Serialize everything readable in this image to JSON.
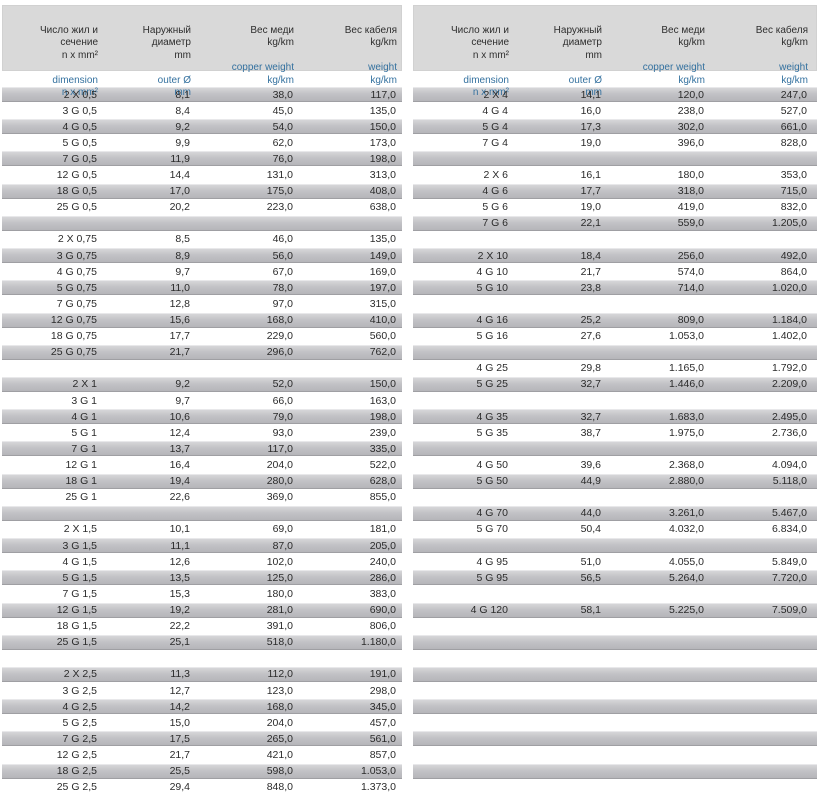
{
  "page": {
    "language": "ru/en",
    "content": "cable specification tables"
  },
  "colors": {
    "accent_blue": "#34719f",
    "header_background": "#d9d9d9",
    "row_gray": "#bcbcc0",
    "text": "#2b2b2b"
  },
  "header": {
    "columns": [
      {
        "ru": "Число жил и\nсечение\nn x mm²",
        "en": "dimension\nn x mm²"
      },
      {
        "ru": "Наружный\nдиаметр\nmm",
        "en": "outer Ø\nmm"
      },
      {
        "ru": "Вес меди\nkg/km",
        "en": "copper weight\nkg/km"
      },
      {
        "ru": "Вес кабеля\nkg/km",
        "en": "weight\nkg/km"
      }
    ]
  },
  "tables": [
    {
      "name": "left",
      "slots": [
        [
          "2 X 0,5",
          "8,1",
          "38,0",
          "117,0"
        ],
        [
          "3 G 0,5",
          "8,4",
          "45,0",
          "135,0"
        ],
        [
          "4 G 0,5",
          "9,2",
          "54,0",
          "150,0"
        ],
        [
          "5 G 0,5",
          "9,9",
          "62,0",
          "173,0"
        ],
        [
          "7 G 0,5",
          "11,9",
          "76,0",
          "198,0"
        ],
        [
          "12 G 0,5",
          "14,4",
          "131,0",
          "313,0"
        ],
        [
          "18 G 0,5",
          "17,0",
          "175,0",
          "408,0"
        ],
        [
          "25 G 0,5",
          "20,2",
          "223,0",
          "638,0"
        ],
        null,
        [
          "2 X 0,75",
          "8,5",
          "46,0",
          "135,0"
        ],
        [
          "3 G 0,75",
          "8,9",
          "56,0",
          "149,0"
        ],
        [
          "4 G 0,75",
          "9,7",
          "67,0",
          "169,0"
        ],
        [
          "5 G 0,75",
          "11,0",
          "78,0",
          "197,0"
        ],
        [
          "7 G 0,75",
          "12,8",
          "97,0",
          "315,0"
        ],
        [
          "12 G 0,75",
          "15,6",
          "168,0",
          "410,0"
        ],
        [
          "18 G 0,75",
          "17,7",
          "229,0",
          "560,0"
        ],
        [
          "25 G 0,75",
          "21,7",
          "296,0",
          "762,0"
        ],
        null,
        [
          "2 X 1",
          "9,2",
          "52,0",
          "150,0"
        ],
        [
          "3 G 1",
          "9,7",
          "66,0",
          "163,0"
        ],
        [
          "4 G 1",
          "10,6",
          "79,0",
          "198,0"
        ],
        [
          "5 G 1",
          "12,4",
          "93,0",
          "239,0"
        ],
        [
          "7 G 1",
          "13,7",
          "117,0",
          "335,0"
        ],
        [
          "12 G 1",
          "16,4",
          "204,0",
          "522,0"
        ],
        [
          "18 G 1",
          "19,4",
          "280,0",
          "628,0"
        ],
        [
          "25 G 1",
          "22,6",
          "369,0",
          "855,0"
        ],
        null,
        [
          "2 X 1,5",
          "10,1",
          "69,0",
          "181,0"
        ],
        [
          "3 G 1,5",
          "11,1",
          "87,0",
          "205,0"
        ],
        [
          "4 G 1,5",
          "12,6",
          "102,0",
          "240,0"
        ],
        [
          "5 G 1,5",
          "13,5",
          "125,0",
          "286,0"
        ],
        [
          "7 G 1,5",
          "15,3",
          "180,0",
          "383,0"
        ],
        [
          "12 G 1,5",
          "19,2",
          "281,0",
          "690,0"
        ],
        [
          "18 G 1,5",
          "22,2",
          "391,0",
          "806,0"
        ],
        [
          "25 G 1,5",
          "25,1",
          "518,0",
          "1.180,0"
        ],
        null,
        [
          "2 X 2,5",
          "11,3",
          "112,0",
          "191,0"
        ],
        [
          "3 G 2,5",
          "12,7",
          "123,0",
          "298,0"
        ],
        [
          "4 G 2,5",
          "14,2",
          "168,0",
          "345,0"
        ],
        [
          "5 G 2,5",
          "15,0",
          "204,0",
          "457,0"
        ],
        [
          "7 G 2,5",
          "17,5",
          "265,0",
          "561,0"
        ],
        [
          "12 G 2,5",
          "21,7",
          "421,0",
          "857,0"
        ],
        [
          "18 G 2,5",
          "25,5",
          "598,0",
          "1.053,0"
        ],
        [
          "25 G 2,5",
          "29,4",
          "848,0",
          "1.373,0"
        ]
      ]
    },
    {
      "name": "right",
      "slots": [
        [
          "2 X 4",
          "14,1",
          "120,0",
          "247,0"
        ],
        [
          "4 G 4",
          "16,0",
          "238,0",
          "527,0"
        ],
        [
          "5 G 4",
          "17,3",
          "302,0",
          "661,0"
        ],
        [
          "7 G 4",
          "19,0",
          "396,0",
          "828,0"
        ],
        null,
        [
          "2 X 6",
          "16,1",
          "180,0",
          "353,0"
        ],
        [
          "4 G 6",
          "17,7",
          "318,0",
          "715,0"
        ],
        [
          "5 G 6",
          "19,0",
          "419,0",
          "832,0"
        ],
        [
          "7 G 6",
          "22,1",
          "559,0",
          "1.205,0"
        ],
        null,
        [
          "2 X 10",
          "18,4",
          "256,0",
          "492,0"
        ],
        [
          "4 G 10",
          "21,7",
          "574,0",
          "864,0"
        ],
        [
          "5 G 10",
          "23,8",
          "714,0",
          "1.020,0"
        ],
        null,
        [
          "4 G 16",
          "25,2",
          "809,0",
          "1.184,0"
        ],
        [
          "5 G 16",
          "27,6",
          "1.053,0",
          "1.402,0"
        ],
        null,
        [
          "4 G 25",
          "29,8",
          "1.165,0",
          "1.792,0"
        ],
        [
          "5 G 25",
          "32,7",
          "1.446,0",
          "2.209,0"
        ],
        null,
        [
          "4 G 35",
          "32,7",
          "1.683,0",
          "2.495,0"
        ],
        [
          "5 G 35",
          "38,7",
          "1.975,0",
          "2.736,0"
        ],
        null,
        [
          "4 G 50",
          "39,6",
          "2.368,0",
          "4.094,0"
        ],
        [
          "5 G 50",
          "44,9",
          "2.880,0",
          "5.118,0"
        ],
        null,
        [
          "4 G 70",
          "44,0",
          "3.261,0",
          "5.467,0"
        ],
        [
          "5 G 70",
          "50,4",
          "4.032,0",
          "6.834,0"
        ],
        null,
        [
          "4 G 95",
          "51,0",
          "4.055,0",
          "5.849,0"
        ],
        [
          "5 G 95",
          "56,5",
          "5.264,0",
          "7.720,0"
        ],
        null,
        [
          "4 G 120",
          "58,1",
          "5.225,0",
          "7.509,0"
        ],
        null,
        null,
        null,
        null,
        null,
        null,
        null,
        null,
        null,
        null,
        null
      ]
    }
  ]
}
